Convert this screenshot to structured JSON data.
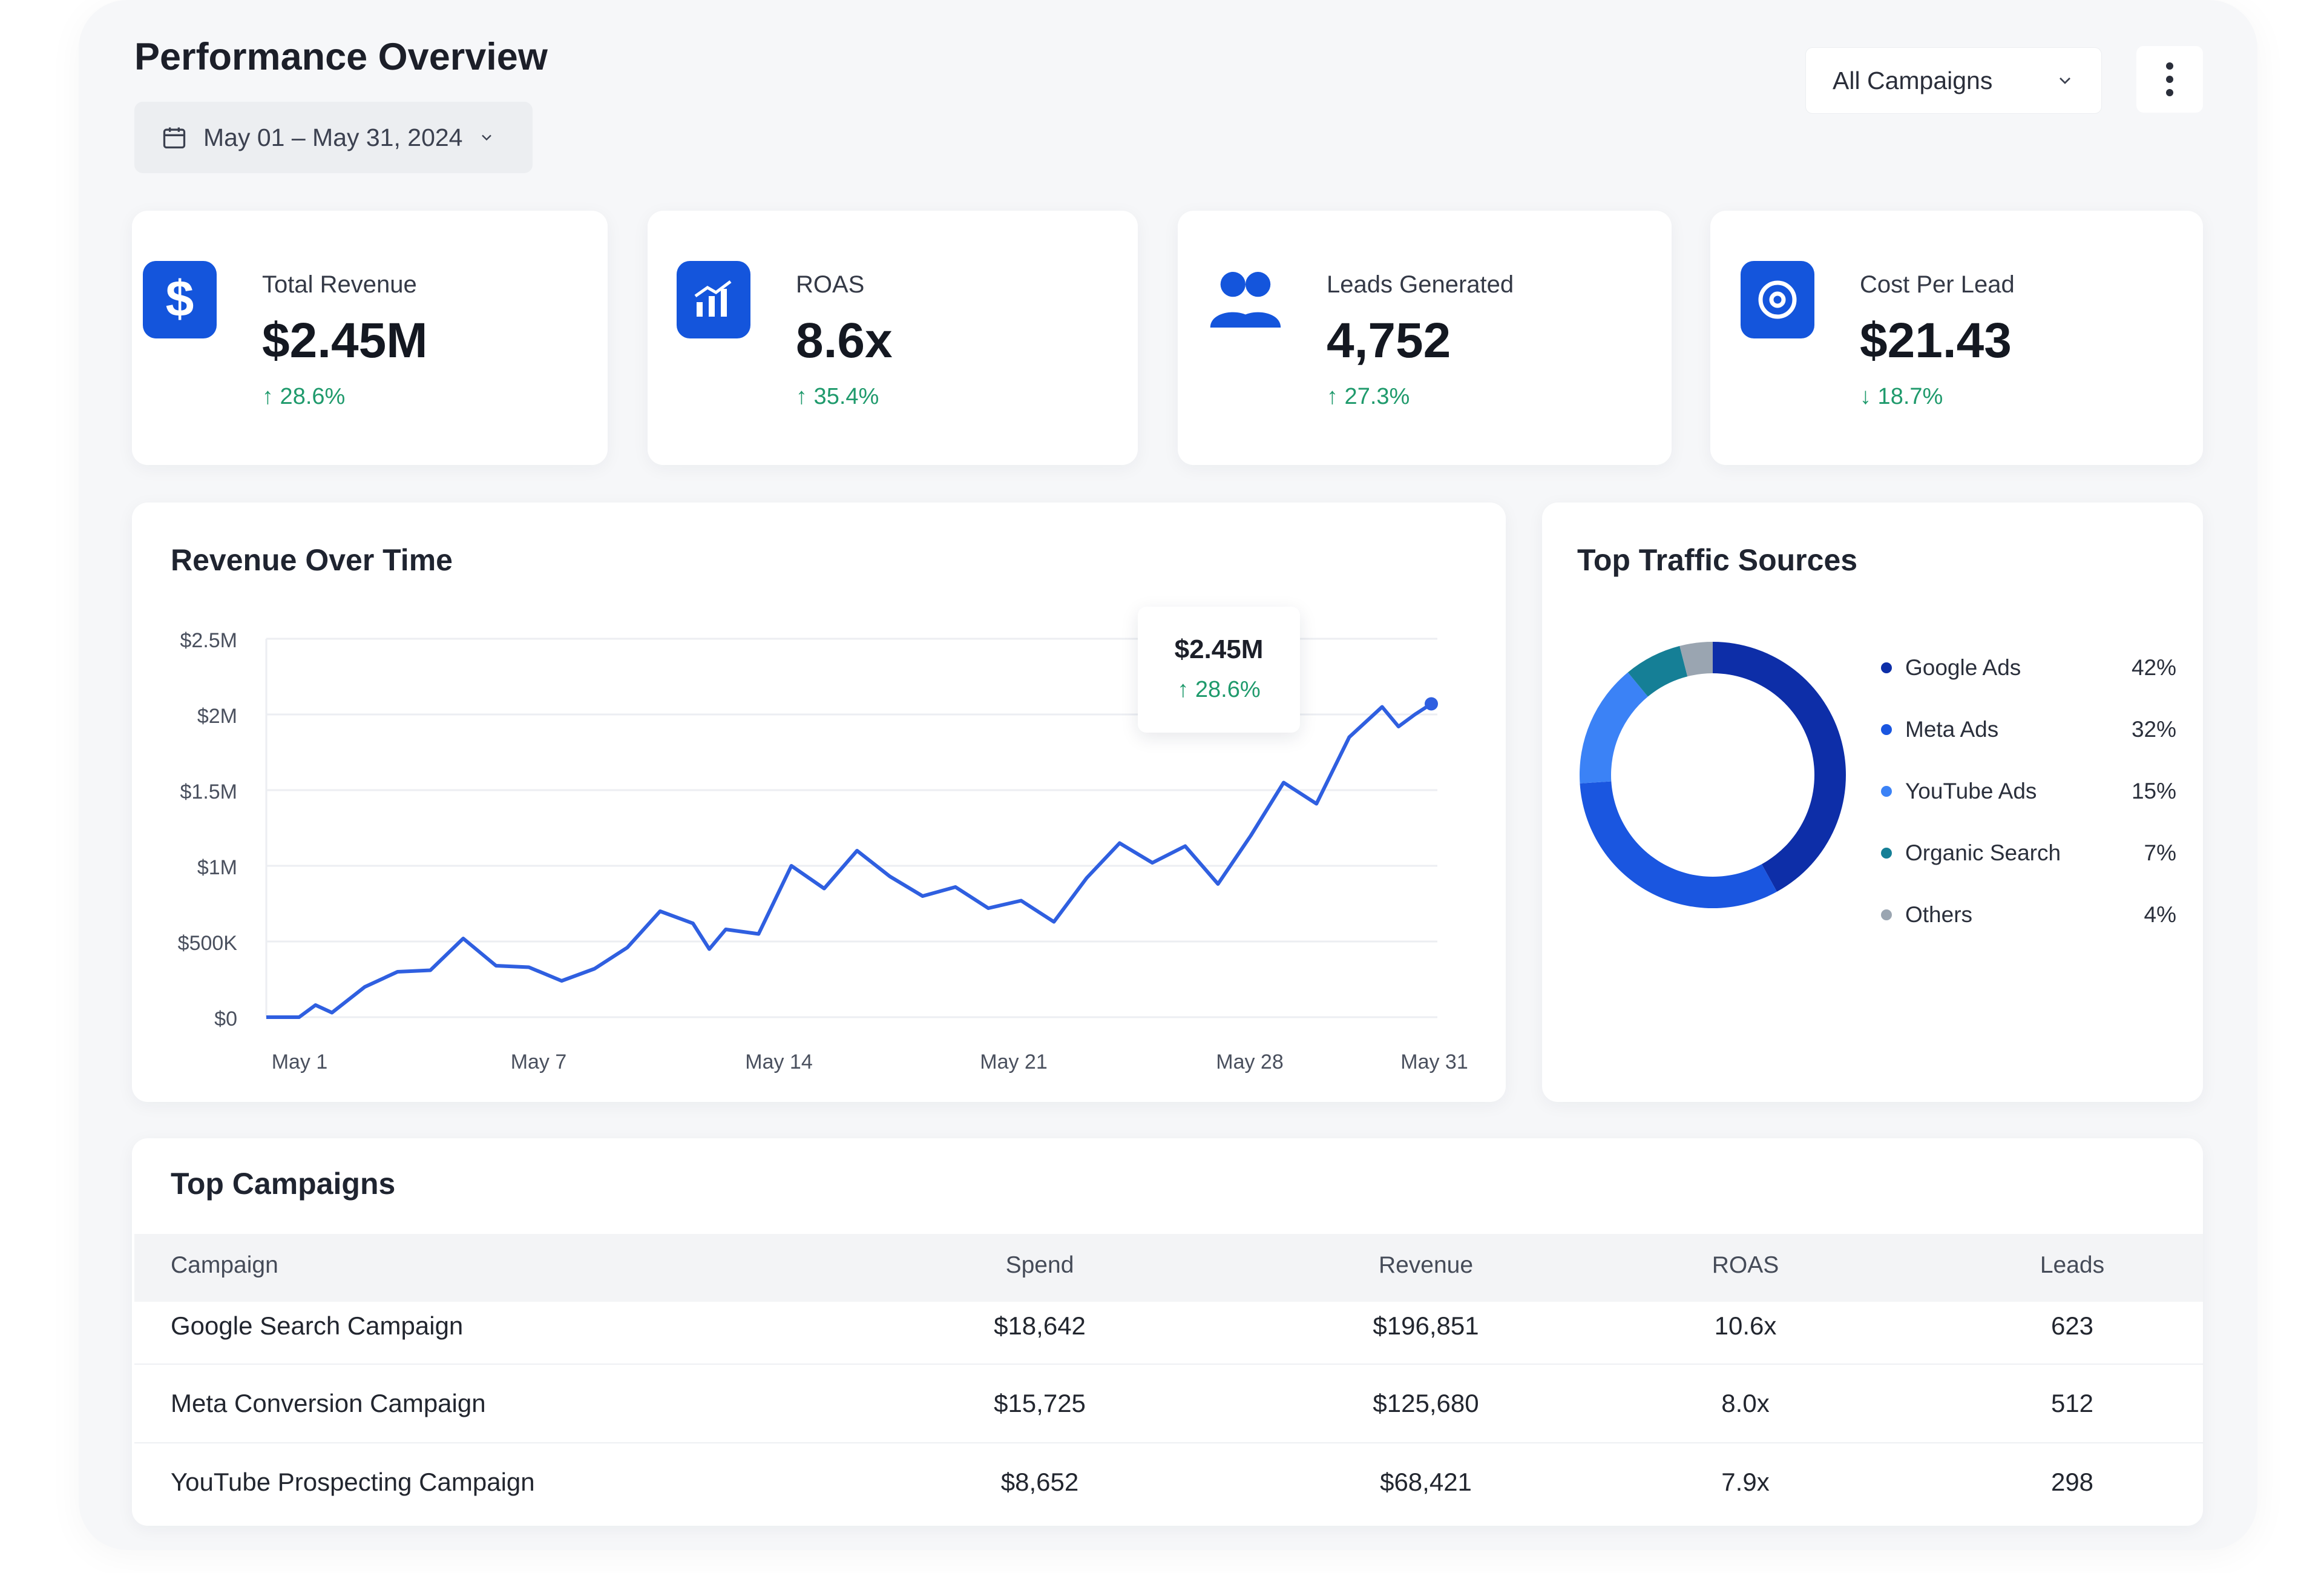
{
  "header": {
    "title": "Performance Overview",
    "date_range": "May 01 – May 31, 2024",
    "campaign_filter": "All Campaigns"
  },
  "kpis": [
    {
      "label": "Total Revenue",
      "value": "$2.45M",
      "delta": "↑ 28.6%",
      "trend": "up",
      "icon": "dollar-icon"
    },
    {
      "label": "ROAS",
      "value": "8.6x",
      "delta": "↑ 35.4%",
      "trend": "up",
      "icon": "chart-icon"
    },
    {
      "label": "Leads Generated",
      "value": "4,752",
      "delta": "↑ 27.3%",
      "trend": "up",
      "icon": "users-icon"
    },
    {
      "label": "Cost Per Lead",
      "value": "$21.43",
      "delta": "↓ 18.7%",
      "trend": "down",
      "icon": "target-icon"
    }
  ],
  "revenue_chart": {
    "title": "Revenue Over Time",
    "tooltip": {
      "value": "$2.45M",
      "delta": "↑ 28.6%"
    }
  },
  "traffic": {
    "title": "Top Traffic Sources"
  },
  "campaigns": {
    "title": "Top Campaigns",
    "columns": [
      "Campaign",
      "Spend",
      "Revenue",
      "ROAS",
      "Leads"
    ],
    "rows": [
      [
        "Google Search Campaign",
        "$18,642",
        "$196,851",
        "10.6x",
        "623"
      ],
      [
        "Meta Conversion Campaign",
        "$15,725",
        "$125,680",
        "8.0x",
        "512"
      ],
      [
        "YouTube Prospecting Campaign",
        "$8,652",
        "$68,421",
        "7.9x",
        "298"
      ]
    ]
  },
  "colors": {
    "accent": "#1455dc",
    "positive": "#1f9a6c",
    "line": "#2f5fe0"
  },
  "chart_data": [
    {
      "type": "line",
      "title": "Revenue Over Time",
      "xlabel": "",
      "ylabel": "",
      "x_ticks": [
        "May 1",
        "May 7",
        "May 14",
        "May 21",
        "May 28",
        "May 31"
      ],
      "y_ticks": [
        "$0",
        "$500K",
        "$1M",
        "$1.5M",
        "$2M",
        "$2.5M"
      ],
      "ylim": [
        0,
        2500000
      ],
      "grid": true,
      "series": [
        {
          "values": [
            [
              1,
              0
            ],
            [
              2,
              0
            ],
            [
              2.5,
              80000
            ],
            [
              3,
              30000
            ],
            [
              4,
              200000
            ],
            [
              5,
              300000
            ],
            [
              6,
              310000
            ],
            [
              7,
              520000
            ],
            [
              8,
              340000
            ],
            [
              9,
              330000
            ],
            [
              10,
              240000
            ],
            [
              11,
              320000
            ],
            [
              12,
              460000
            ],
            [
              13,
              700000
            ],
            [
              14,
              620000
            ],
            [
              14.5,
              450000
            ],
            [
              15,
              580000
            ],
            [
              16,
              550000
            ],
            [
              17,
              1000000
            ],
            [
              18,
              850000
            ],
            [
              19,
              1100000
            ],
            [
              20,
              930000
            ],
            [
              21,
              800000
            ],
            [
              22,
              860000
            ],
            [
              23,
              720000
            ],
            [
              24,
              770000
            ],
            [
              25,
              630000
            ],
            [
              26,
              920000
            ],
            [
              27,
              1150000
            ],
            [
              28,
              1020000
            ],
            [
              29,
              1130000
            ],
            [
              30,
              880000
            ],
            [
              31,
              1200000
            ],
            [
              32,
              1550000
            ],
            [
              33,
              1410000
            ],
            [
              34,
              1850000
            ],
            [
              35,
              2050000
            ],
            [
              35.5,
              1920000
            ],
            [
              36,
              2000000
            ],
            [
              36.5,
              2070000
            ]
          ]
        }
      ]
    },
    {
      "type": "pie",
      "title": "Top Traffic Sources",
      "donut": true,
      "legend": "right",
      "slices": [
        {
          "label": "Google Ads",
          "value": 42,
          "display": "42%",
          "color": "#0d2ea8"
        },
        {
          "label": "Meta Ads",
          "value": 32,
          "display": "32%",
          "color": "#1a56e0"
        },
        {
          "label": "YouTube Ads",
          "value": 15,
          "display": "15%",
          "color": "#3b82f6"
        },
        {
          "label": "Organic Search",
          "value": 7,
          "display": "7%",
          "color": "#157f96"
        },
        {
          "label": "Others",
          "value": 4,
          "display": "4%",
          "color": "#9aa5b1"
        }
      ]
    }
  ]
}
